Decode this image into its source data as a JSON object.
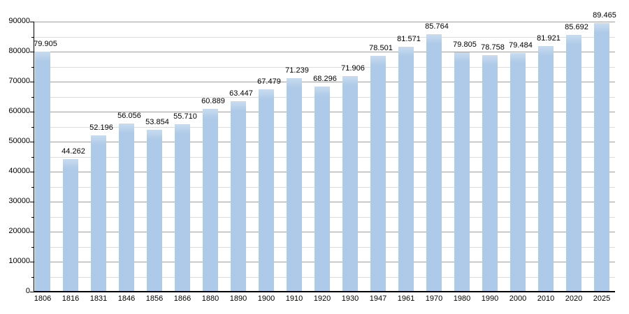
{
  "chart_data": {
    "type": "bar",
    "title": "",
    "xlabel": "",
    "ylabel": "",
    "categories": [
      "1806",
      "1816",
      "1831",
      "1846",
      "1856",
      "1866",
      "1880",
      "1890",
      "1900",
      "1910",
      "1920",
      "1930",
      "1947",
      "1961",
      "1970",
      "1980",
      "1990",
      "2000",
      "2010",
      "2020",
      "2025"
    ],
    "values": [
      79905,
      44262,
      52196,
      56056,
      53854,
      55710,
      60889,
      63447,
      67479,
      71239,
      68296,
      71906,
      78501,
      81571,
      85764,
      79805,
      78758,
      79484,
      81921,
      85692,
      89465
    ],
    "value_labels": [
      "79.905",
      "44.262",
      "52.196",
      "56.056",
      "53.854",
      "55.710",
      "60.889",
      "63.447",
      "67.479",
      "71.239",
      "68.296",
      "71.906",
      "78.501",
      "81.571",
      "85.764",
      "79.805",
      "78.758",
      "79.484",
      "81.921",
      "85.692",
      "89.465"
    ],
    "y_tick_labels": [
      "0",
      "10000",
      "20000",
      "30000",
      "40000",
      "50000",
      "60000",
      "70000",
      "80000",
      "90000"
    ],
    "y_ticks": [
      0,
      10000,
      20000,
      30000,
      40000,
      50000,
      60000,
      70000,
      80000,
      90000
    ],
    "minor_step": 5000,
    "ylim": [
      0,
      90000
    ],
    "grid": true,
    "legend": "none",
    "bar_color": "#adcae8",
    "bar_highlight_color": "#c8dcf0",
    "major_grid_color": "#9e9e9e",
    "minor_grid_color": "#dcdcdc",
    "axis_color": "#000000",
    "text_color": "#000000"
  }
}
